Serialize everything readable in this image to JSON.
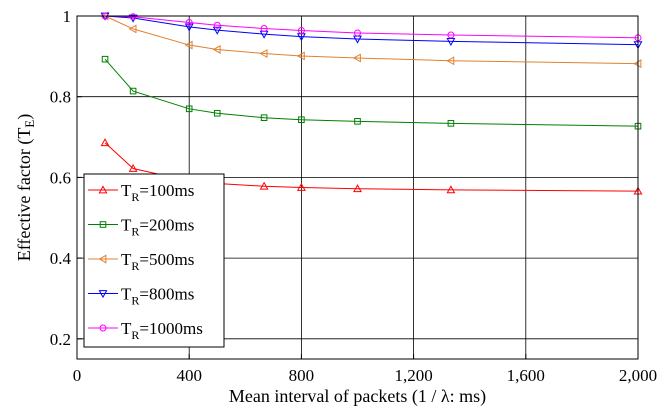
{
  "chart_data": {
    "type": "line",
    "xlabel": "Mean interval of packets (1 / λ: ms)",
    "ylabel": "Effective factor (T",
    "ylabel_sub": "E",
    "ylabel_tail": ")",
    "xlim": [
      0,
      2000
    ],
    "ylim": [
      0.15,
      1.0
    ],
    "x_ticks": [
      0,
      400,
      800,
      1200,
      1600,
      2000
    ],
    "x_tick_labels": [
      "0",
      "400",
      "800",
      "1,200",
      "1,600",
      "2,000"
    ],
    "y_ticks": [
      0.2,
      0.4,
      0.6,
      0.8,
      1.0
    ],
    "y_tick_labels": [
      "0.2",
      "0.4",
      "0.6",
      "0.8",
      "1"
    ],
    "grid": true,
    "legend_position": "left-middle",
    "x": [
      100,
      200,
      400,
      500,
      667,
      800,
      1000,
      1333,
      2000
    ],
    "series": [
      {
        "name": "T_R=100ms",
        "legend_prefix": "T",
        "legend_sub": "R",
        "legend_suffix": "=100ms",
        "color": "#ff0000",
        "marker": "triangle-up",
        "values": [
          0.686,
          0.622,
          0.591,
          0.585,
          0.578,
          0.575,
          0.572,
          0.569,
          0.566
        ]
      },
      {
        "name": "T_R=200ms",
        "legend_prefix": "T",
        "legend_sub": "R",
        "legend_suffix": "=200ms",
        "color": "#008000",
        "marker": "square",
        "values": [
          0.893,
          0.814,
          0.77,
          0.759,
          0.748,
          0.743,
          0.739,
          0.734,
          0.727
        ]
      },
      {
        "name": "T_R=500ms",
        "legend_prefix": "T",
        "legend_sub": "R",
        "legend_suffix": "=500ms",
        "color": "#e08030",
        "marker": "triangle-left",
        "values": [
          1.0,
          0.968,
          0.928,
          0.917,
          0.907,
          0.901,
          0.896,
          0.889,
          0.882
        ]
      },
      {
        "name": "T_R=800ms",
        "legend_prefix": "T",
        "legend_sub": "R",
        "legend_suffix": "=800ms",
        "color": "#0000ff",
        "marker": "triangle-down",
        "values": [
          1.0,
          0.995,
          0.973,
          0.965,
          0.955,
          0.949,
          0.943,
          0.937,
          0.929
        ]
      },
      {
        "name": "T_R=1000ms",
        "legend_prefix": "T",
        "legend_sub": "R",
        "legend_suffix": "=1000ms",
        "color": "#ff00ff",
        "marker": "circle",
        "values": [
          1.0,
          0.998,
          0.984,
          0.977,
          0.969,
          0.964,
          0.958,
          0.953,
          0.946
        ]
      }
    ]
  }
}
